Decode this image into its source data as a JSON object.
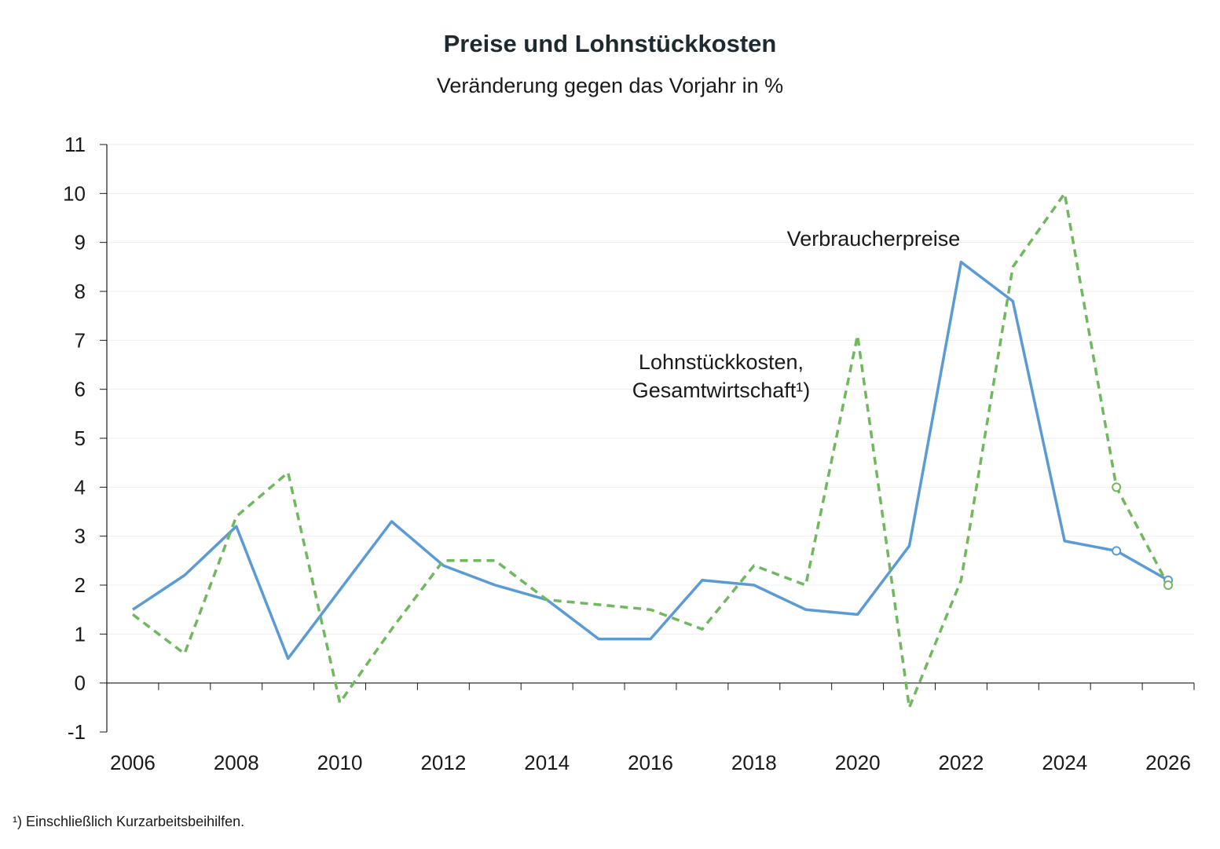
{
  "chart_data": {
    "type": "line",
    "title": "Preise und Lohnstückkosten",
    "subtitle": "Veränderung gegen das Vorjahr in %",
    "xlabel": "",
    "ylabel": "",
    "xlim": [
      2005.5,
      2026.5
    ],
    "ylim": [
      -1,
      11
    ],
    "y_ticks": [
      -1,
      0,
      1,
      2,
      3,
      4,
      5,
      6,
      7,
      8,
      9,
      10,
      11
    ],
    "x_tick_labels": [
      "2006",
      "2008",
      "2010",
      "2012",
      "2014",
      "2016",
      "2018",
      "2020",
      "2022",
      "2024",
      "2026"
    ],
    "grid": true,
    "legend": "none",
    "series": [
      {
        "name": "Verbraucherpreise",
        "color": "#5b9bd5",
        "style": "solid",
        "x": [
          2006,
          2007,
          2008,
          2009,
          2010,
          2011,
          2012,
          2013,
          2014,
          2015,
          2016,
          2017,
          2018,
          2019,
          2020,
          2021,
          2022,
          2023,
          2024,
          2025,
          2026
        ],
        "values": [
          1.5,
          2.2,
          3.2,
          0.5,
          1.9,
          3.3,
          2.4,
          2.0,
          1.7,
          0.9,
          0.9,
          2.1,
          2.0,
          1.5,
          1.4,
          2.8,
          8.6,
          7.8,
          2.9,
          2.7,
          2.1
        ],
        "forecast_from": 2025
      },
      {
        "name": "Lohnstückkosten, Gesamtwirtschaft¹)",
        "color": "#70b85e",
        "style": "dashed",
        "x": [
          2006,
          2007,
          2008,
          2009,
          2010,
          2011,
          2012,
          2013,
          2014,
          2015,
          2016,
          2017,
          2018,
          2019,
          2020,
          2021,
          2022,
          2023,
          2024,
          2025,
          2026
        ],
        "values": [
          1.4,
          0.6,
          3.4,
          4.3,
          -0.4,
          1.1,
          2.5,
          2.5,
          1.7,
          1.6,
          1.5,
          1.1,
          2.4,
          2.0,
          7.1,
          -0.5,
          2.1,
          8.5,
          10.0,
          4.0,
          2.0
        ],
        "forecast_from": 2025
      }
    ],
    "annotations": [
      {
        "text": "Verbraucherpreise",
        "series": 0
      },
      {
        "text": "Lohnstückkosten,",
        "series": 1
      },
      {
        "text": "Gesamtwirtschaft¹)",
        "series": 1
      }
    ]
  },
  "footnote": "¹) Einschließlich Kurzarbeitsbeihilfen."
}
